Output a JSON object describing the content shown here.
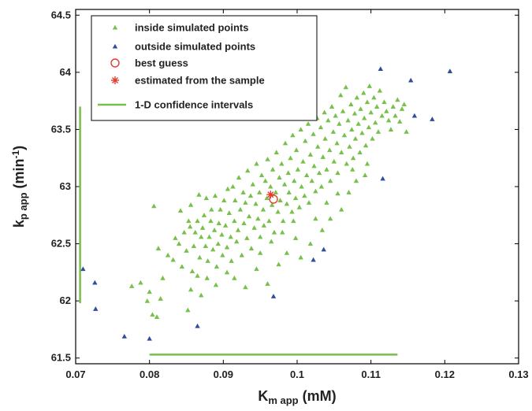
{
  "chart_data": {
    "type": "scatter",
    "xlabel": {
      "main": "K",
      "sub": "m app",
      "unit": " (mM)"
    },
    "ylabel": {
      "main": "k",
      "sub": "p app",
      "unit_pre": " (min",
      "unit_sup": "-1",
      "unit_post": ")"
    },
    "xlim": [
      0.07,
      0.13
    ],
    "ylim": [
      61.45,
      64.55
    ],
    "xticks": [
      "0.07",
      "0.08",
      "0.09",
      "0.1",
      "0.11",
      "0.12",
      "0.13"
    ],
    "yticks": [
      "61.5",
      "62",
      "62.5",
      "63",
      "63.5",
      "64",
      "64.5"
    ],
    "grid": false,
    "legend_position": "top-left",
    "colors": {
      "inside": "#77c04a",
      "outside": "#2f4d9a",
      "best": "#e23b2e",
      "ci": "#77c04a"
    },
    "legend": [
      {
        "label": "inside simulated points",
        "marker": "triangle",
        "color": "#77c04a"
      },
      {
        "label": "outside simulated points",
        "marker": "triangle",
        "color": "#2f4d9a"
      },
      {
        "label": "best guess",
        "marker": "circle",
        "color": "#e23b2e"
      },
      {
        "label": "estimated from the sample",
        "marker": "asterisk",
        "color": "#e23b2e"
      },
      {
        "label": "1-D confidence intervals",
        "marker": "line",
        "color": "#77c04a"
      }
    ],
    "series": [
      {
        "name": "inside simulated points",
        "points": [
          [
            0.0818,
            62.2
          ],
          [
            0.0825,
            62.4
          ],
          [
            0.0832,
            62.36
          ],
          [
            0.0835,
            62.55
          ],
          [
            0.084,
            62.5
          ],
          [
            0.0842,
            62.79
          ],
          [
            0.0844,
            62.3
          ],
          [
            0.0847,
            62.6
          ],
          [
            0.085,
            62.44
          ],
          [
            0.0853,
            62.7
          ],
          [
            0.0855,
            62.65
          ],
          [
            0.0856,
            62.84
          ],
          [
            0.0858,
            62.26
          ],
          [
            0.086,
            62.48
          ],
          [
            0.0862,
            62.6
          ],
          [
            0.0865,
            62.7
          ],
          [
            0.0867,
            62.93
          ],
          [
            0.0868,
            62.38
          ],
          [
            0.087,
            62.56
          ],
          [
            0.0872,
            62.64
          ],
          [
            0.0874,
            62.75
          ],
          [
            0.0876,
            62.48
          ],
          [
            0.0877,
            62.9
          ],
          [
            0.0879,
            62.35
          ],
          [
            0.0881,
            62.56
          ],
          [
            0.0883,
            62.7
          ],
          [
            0.0884,
            62.8
          ],
          [
            0.0886,
            62.45
          ],
          [
            0.0888,
            62.62
          ],
          [
            0.0889,
            62.92
          ],
          [
            0.0891,
            62.3
          ],
          [
            0.0893,
            62.5
          ],
          [
            0.0894,
            62.68
          ],
          [
            0.0896,
            62.8
          ],
          [
            0.0898,
            62.58
          ],
          [
            0.0899,
            62.4
          ],
          [
            0.0901,
            62.88
          ],
          [
            0.0903,
            62.66
          ],
          [
            0.0905,
            62.47
          ],
          [
            0.0906,
            62.98
          ],
          [
            0.0908,
            62.77
          ],
          [
            0.091,
            62.56
          ],
          [
            0.0911,
            62.35
          ],
          [
            0.0913,
            63.0
          ],
          [
            0.0915,
            62.7
          ],
          [
            0.0916,
            62.88
          ],
          [
            0.0918,
            62.52
          ],
          [
            0.092,
            62.62
          ],
          [
            0.0921,
            63.08
          ],
          [
            0.0923,
            62.8
          ],
          [
            0.0925,
            62.4
          ],
          [
            0.0927,
            62.95
          ],
          [
            0.0928,
            62.68
          ],
          [
            0.093,
            62.86
          ],
          [
            0.0932,
            62.55
          ],
          [
            0.0933,
            63.14
          ],
          [
            0.0935,
            62.74
          ],
          [
            0.0937,
            62.92
          ],
          [
            0.0938,
            62.46
          ],
          [
            0.094,
            63.02
          ],
          [
            0.0942,
            62.64
          ],
          [
            0.0944,
            62.85
          ],
          [
            0.0945,
            63.2
          ],
          [
            0.0947,
            62.72
          ],
          [
            0.0949,
            62.95
          ],
          [
            0.095,
            62.56
          ],
          [
            0.0952,
            63.1
          ],
          [
            0.0954,
            62.8
          ],
          [
            0.0955,
            62.66
          ],
          [
            0.0957,
            63.05
          ],
          [
            0.0959,
            62.9
          ],
          [
            0.096,
            63.24
          ],
          [
            0.0962,
            62.7
          ],
          [
            0.0964,
            63.0
          ],
          [
            0.0966,
            62.84
          ],
          [
            0.0967,
            63.15
          ],
          [
            0.0969,
            62.6
          ],
          [
            0.0971,
            62.95
          ],
          [
            0.0972,
            63.3
          ],
          [
            0.0974,
            62.78
          ],
          [
            0.0976,
            63.08
          ],
          [
            0.0977,
            62.88
          ],
          [
            0.0979,
            63.2
          ],
          [
            0.0981,
            62.7
          ],
          [
            0.0983,
            63.02
          ],
          [
            0.0984,
            63.38
          ],
          [
            0.0986,
            62.85
          ],
          [
            0.0988,
            63.12
          ],
          [
            0.0989,
            62.95
          ],
          [
            0.0991,
            63.25
          ],
          [
            0.0993,
            62.78
          ],
          [
            0.0994,
            63.45
          ],
          [
            0.0996,
            63.05
          ],
          [
            0.0998,
            62.9
          ],
          [
            0.0999,
            63.32
          ],
          [
            0.1001,
            63.15
          ],
          [
            0.1003,
            62.82
          ],
          [
            0.1005,
            63.5
          ],
          [
            0.1006,
            63.0
          ],
          [
            0.1008,
            63.22
          ],
          [
            0.101,
            62.92
          ],
          [
            0.1011,
            63.4
          ],
          [
            0.1013,
            63.1
          ],
          [
            0.1015,
            63.55
          ],
          [
            0.1016,
            62.86
          ],
          [
            0.1018,
            63.28
          ],
          [
            0.102,
            63.05
          ],
          [
            0.1022,
            63.46
          ],
          [
            0.1023,
            63.18
          ],
          [
            0.1025,
            62.96
          ],
          [
            0.1027,
            63.6
          ],
          [
            0.1028,
            63.35
          ],
          [
            0.103,
            63.12
          ],
          [
            0.1032,
            63.52
          ],
          [
            0.1033,
            63.0
          ],
          [
            0.1035,
            63.26
          ],
          [
            0.1037,
            63.65
          ],
          [
            0.1038,
            63.42
          ],
          [
            0.104,
            63.15
          ],
          [
            0.1042,
            63.58
          ],
          [
            0.1044,
            63.32
          ],
          [
            0.1045,
            63.05
          ],
          [
            0.1047,
            63.7
          ],
          [
            0.1049,
            63.48
          ],
          [
            0.105,
            63.22
          ],
          [
            0.1052,
            63.62
          ],
          [
            0.1054,
            63.38
          ],
          [
            0.1055,
            63.12
          ],
          [
            0.1057,
            63.55
          ],
          [
            0.1059,
            63.8
          ],
          [
            0.106,
            63.3
          ],
          [
            0.1062,
            63.66
          ],
          [
            0.1064,
            63.45
          ],
          [
            0.1066,
            63.87
          ],
          [
            0.1067,
            63.2
          ],
          [
            0.1069,
            63.58
          ],
          [
            0.1071,
            63.35
          ],
          [
            0.1073,
            63.72
          ],
          [
            0.1074,
            63.5
          ],
          [
            0.1076,
            63.25
          ],
          [
            0.1078,
            63.64
          ],
          [
            0.1079,
            63.42
          ],
          [
            0.1081,
            63.78
          ],
          [
            0.1083,
            63.55
          ],
          [
            0.1085,
            63.3
          ],
          [
            0.1086,
            63.68
          ],
          [
            0.1088,
            63.47
          ],
          [
            0.109,
            63.82
          ],
          [
            0.1091,
            63.6
          ],
          [
            0.1093,
            63.36
          ],
          [
            0.1095,
            63.74
          ],
          [
            0.1097,
            63.52
          ],
          [
            0.1098,
            63.88
          ],
          [
            0.11,
            63.65
          ],
          [
            0.1102,
            63.42
          ],
          [
            0.1104,
            63.78
          ],
          [
            0.1106,
            63.56
          ],
          [
            0.1108,
            63.7
          ],
          [
            0.111,
            63.48
          ],
          [
            0.1112,
            63.84
          ],
          [
            0.1115,
            63.62
          ],
          [
            0.1118,
            63.74
          ],
          [
            0.1121,
            63.66
          ],
          [
            0.1124,
            63.58
          ],
          [
            0.1127,
            63.5
          ],
          [
            0.113,
            63.7
          ],
          [
            0.1133,
            63.62
          ],
          [
            0.1136,
            63.76
          ],
          [
            0.1139,
            63.57
          ],
          [
            0.1142,
            63.68
          ],
          [
            0.1145,
            63.72
          ],
          [
            0.1148,
            63.48
          ],
          [
            0.0806,
            62.83
          ],
          [
            0.0804,
            61.88
          ],
          [
            0.081,
            61.86
          ],
          [
            0.0815,
            62.02
          ],
          [
            0.08,
            62.08
          ],
          [
            0.0797,
            62.0
          ],
          [
            0.0788,
            62.16
          ],
          [
            0.0776,
            62.13
          ],
          [
            0.0812,
            62.46
          ],
          [
            0.0852,
            61.92
          ],
          [
            0.0856,
            62.1
          ],
          [
            0.087,
            62.05
          ],
          [
            0.0878,
            62.2
          ],
          [
            0.0905,
            62.25
          ],
          [
            0.093,
            62.12
          ],
          [
            0.0945,
            62.28
          ],
          [
            0.096,
            62.15
          ],
          [
            0.0975,
            62.32
          ],
          [
            0.0986,
            62.42
          ],
          [
            0.1005,
            62.38
          ],
          [
            0.0998,
            62.55
          ],
          [
            0.1018,
            62.5
          ],
          [
            0.1034,
            62.62
          ],
          [
            0.1045,
            62.72
          ],
          [
            0.106,
            62.8
          ],
          [
            0.107,
            62.95
          ],
          [
            0.108,
            63.05
          ],
          [
            0.1092,
            63.1
          ],
          [
            0.1095,
            63.2
          ],
          [
            0.1075,
            63.15
          ],
          [
            0.1025,
            62.72
          ],
          [
            0.104,
            62.86
          ],
          [
            0.1055,
            62.94
          ],
          [
            0.0865,
            62.22
          ],
          [
            0.089,
            62.14
          ],
          [
            0.0915,
            62.2
          ],
          [
            0.095,
            62.42
          ],
          [
            0.0965,
            62.52
          ],
          [
            0.098,
            62.6
          ],
          [
            0.0995,
            62.7
          ]
        ]
      },
      {
        "name": "outside simulated points",
        "points": [
          [
            0.071,
            62.28
          ],
          [
            0.0726,
            62.16
          ],
          [
            0.0727,
            61.93
          ],
          [
            0.0766,
            61.69
          ],
          [
            0.08,
            61.67
          ],
          [
            0.0865,
            61.78
          ],
          [
            0.0968,
            62.04
          ],
          [
            0.1022,
            62.36
          ],
          [
            0.1036,
            62.45
          ],
          [
            0.1113,
            64.03
          ],
          [
            0.1116,
            63.07
          ],
          [
            0.1154,
            63.93
          ],
          [
            0.1159,
            63.62
          ],
          [
            0.1183,
            63.59
          ],
          [
            0.1207,
            64.01
          ]
        ]
      }
    ],
    "best_guess": {
      "x": 0.0968,
      "y": 62.89
    },
    "estimated_from_sample": {
      "x": 0.0964,
      "y": 62.93
    },
    "confidence_intervals": {
      "x_interval": {
        "x": [
          0.08,
          0.1136
        ],
        "y": 61.53
      },
      "y_interval": {
        "x": 0.0706,
        "y": [
          61.98,
          63.7
        ]
      }
    }
  }
}
